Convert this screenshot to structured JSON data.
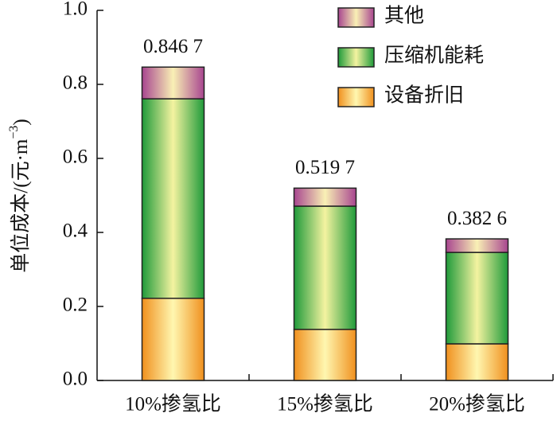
{
  "chart_data": {
    "type": "stacked_bar",
    "y_label": "单位成本/(元·m",
    "y_label_sup": "−3",
    "y_label_end": ")",
    "categories": [
      "10%掺氢比",
      "15%掺氢比",
      "20%掺氢比"
    ],
    "series": [
      {
        "name": "设备折旧",
        "color": "#f0901e",
        "values": [
          0.222,
          0.138,
          0.099
        ]
      },
      {
        "name": "压缩机能耗",
        "color": "#1f9a3a",
        "values": [
          0.539,
          0.333,
          0.247
        ]
      },
      {
        "name": "其他",
        "color": "#a8458f",
        "values": [
          0.0857,
          0.0487,
          0.0366
        ]
      }
    ],
    "totals": [
      0.8467,
      0.5197,
      0.3826
    ],
    "total_labels": [
      "0.846 7",
      "0.519 7",
      "0.382 6"
    ],
    "ylim": [
      0,
      1
    ],
    "yticks": [
      {
        "value": 0,
        "label": "0.0"
      },
      0.2,
      0.4,
      0.6,
      0.8,
      {
        "value": 1,
        "label": "1.0"
      }
    ],
    "legend": "upper right"
  }
}
